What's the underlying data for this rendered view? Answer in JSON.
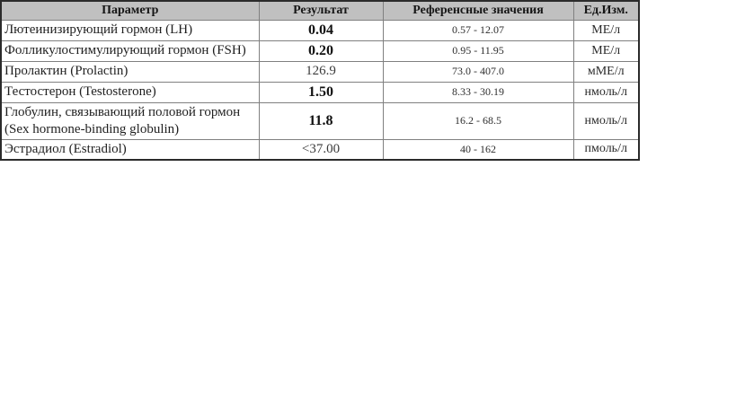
{
  "table": {
    "headers": [
      "Параметр",
      "Результат",
      "Референсные значения",
      "Ед.Изм."
    ],
    "rows": [
      {
        "parameter": "Лютеинизирующий гормон (LH)",
        "result": "0.04",
        "bold": true,
        "reference": "0.57 - 12.07",
        "unit": "МЕ/л"
      },
      {
        "parameter": "Фолликулостимулирующий гормон (FSH)",
        "result": "0.20",
        "bold": true,
        "reference": "0.95 - 11.95",
        "unit": "МЕ/л"
      },
      {
        "parameter": "Пролактин (Prolactin)",
        "result": "126.9",
        "bold": false,
        "reference": "73.0 - 407.0",
        "unit": "мМЕ/л"
      },
      {
        "parameter": "Тестостерон (Testosterone)",
        "result": "1.50",
        "bold": true,
        "reference": "8.33 - 30.19",
        "unit": "нмоль/л"
      },
      {
        "parameter": "Глобулин, связывающий половой гормон (Sex hormone-binding globulin)",
        "result": "11.8",
        "bold": true,
        "reference": "16.2 - 68.5",
        "unit": "нмоль/л"
      },
      {
        "parameter": "Эстрадиол (Estradiol)",
        "result": "<37.00",
        "bold": false,
        "reference": "40 - 162",
        "unit": "пмоль/л"
      }
    ]
  },
  "colors": {
    "header_bg": "#c0c0c0",
    "inner_border": "#808080",
    "outer_border": "#2b2b2b",
    "text": "#1f1f1f"
  }
}
